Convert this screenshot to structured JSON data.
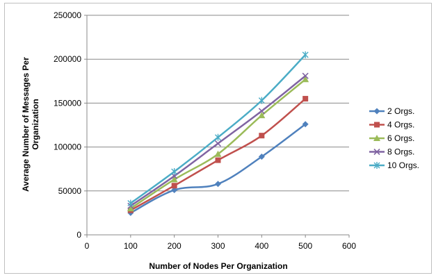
{
  "chart_data": {
    "type": "line",
    "title": "",
    "xlabel": "Number of Nodes Per Organization",
    "ylabel_lines": [
      "Average Number of Messages Per",
      "Organization"
    ],
    "xlim": [
      0,
      600
    ],
    "ylim": [
      0,
      250000
    ],
    "xticks": [
      0,
      100,
      200,
      300,
      400,
      500,
      600
    ],
    "yticks": [
      0,
      50000,
      100000,
      150000,
      200000,
      250000
    ],
    "grid": "horizontal",
    "legend_position": "right",
    "x": [
      100,
      200,
      300,
      400,
      500
    ],
    "series": [
      {
        "name": "2 Orgs.",
        "values": [
          25000,
          51000,
          58000,
          89000,
          126000
        ],
        "color": "#4f81bd",
        "marker": "diamond"
      },
      {
        "name": "4 Orgs.",
        "values": [
          28000,
          56000,
          85000,
          113000,
          155000
        ],
        "color": "#c0504d",
        "marker": "square"
      },
      {
        "name": "6 Orgs.",
        "values": [
          30000,
          63000,
          92000,
          136000,
          177000
        ],
        "color": "#9bbb59",
        "marker": "triangle"
      },
      {
        "name": "8 Orgs.",
        "values": [
          33000,
          67000,
          104000,
          141000,
          181000
        ],
        "color": "#8064a2",
        "marker": "x"
      },
      {
        "name": "10 Orgs.",
        "values": [
          36000,
          72000,
          111000,
          153000,
          205000
        ],
        "color": "#4bacc6",
        "marker": "star"
      }
    ]
  }
}
